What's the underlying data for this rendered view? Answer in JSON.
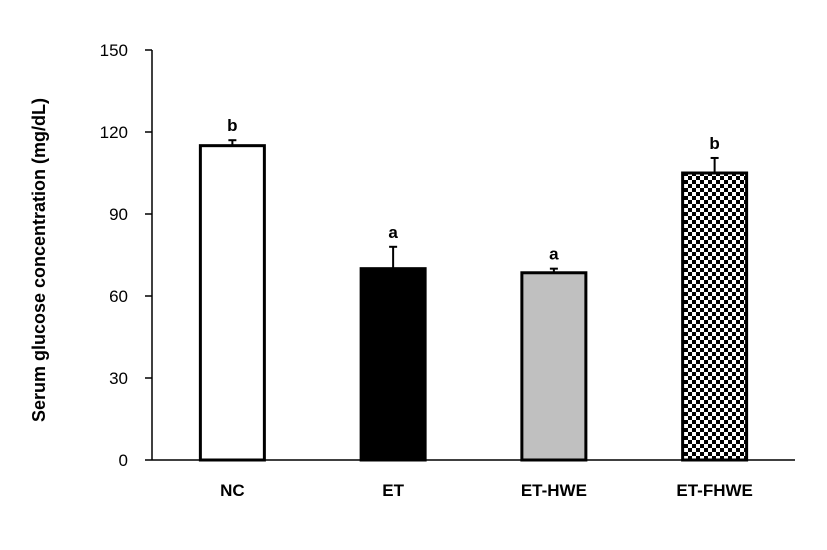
{
  "chart_data": {
    "type": "bar",
    "title": "",
    "xlabel": "",
    "ylabel": "Serum glucose concentration  (mg/dL)",
    "ylim": [
      0,
      150
    ],
    "yticks": [
      0,
      30,
      60,
      90,
      120,
      150
    ],
    "ytick_labels": [
      "0",
      "30",
      "60",
      "90",
      "120",
      "150"
    ],
    "grid": false,
    "categories": [
      "NC",
      "ET",
      "ET-HWE",
      "ET-FHWE"
    ],
    "values": [
      115,
      70,
      68.5,
      105
    ],
    "errors": [
      2,
      8,
      1.5,
      5.5
    ],
    "significance_labels": [
      "b",
      "a",
      "a",
      "b"
    ],
    "bar_fills": [
      "white",
      "black",
      "gray",
      "checkered"
    ],
    "colors": {
      "white": "#ffffff",
      "black": "#000000",
      "gray": "#c0c0c0",
      "check_dark": "#000000",
      "check_light": "#ffffff"
    }
  }
}
